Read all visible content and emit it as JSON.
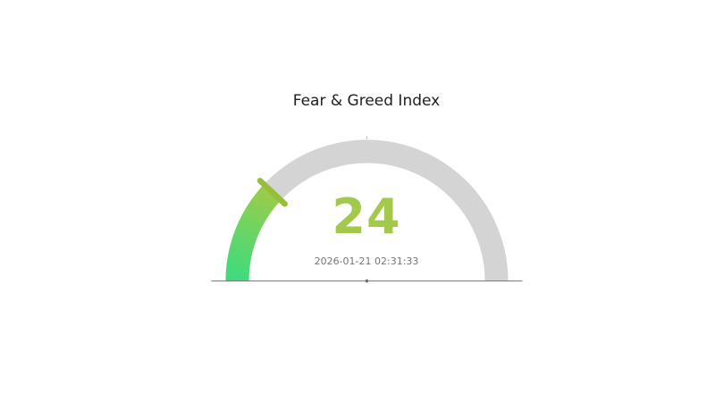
{
  "chart": {
    "title": "Fear & Greed Index",
    "value_label": "24",
    "timestamp": "2026-01-21 02:31:33"
  },
  "chart_data": {
    "type": "gauge",
    "title": "Fear & Greed Index",
    "value": 24,
    "min": 0,
    "max": 100,
    "start_angle_deg": 180,
    "end_angle_deg": 0,
    "subtitle_timestamp": "2026-01-21 02:31:33",
    "legend": "none",
    "axis_labels": "none",
    "colors": {
      "track": "#d4d4d4",
      "progress_gradient_start": "#3edb7e",
      "progress_gradient_mid": "#6ed463",
      "progress_gradient_end": "#9ccb49",
      "pointer_tick": "#96be3b",
      "value_text": "#a3c94c",
      "timestamp_text": "#757575",
      "title_text": "#1e1e1e",
      "baseline": "#7a7a7a"
    }
  }
}
